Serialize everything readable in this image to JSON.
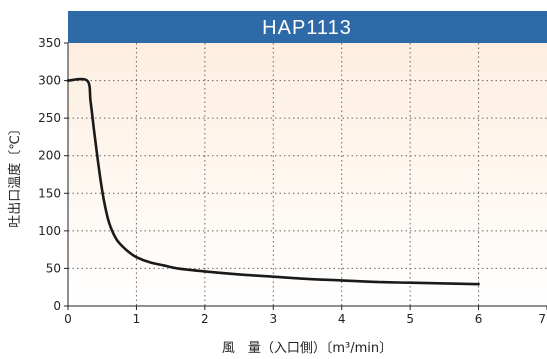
{
  "chart_data": {
    "type": "line",
    "title": "HAP1113",
    "xlabel": "風　量（入口側）〔m³/min〕",
    "ylabel": "吐出口温度〔℃〕",
    "xlim": [
      0,
      7
    ],
    "ylim": [
      0,
      350
    ],
    "x_ticks": [
      "0",
      "1",
      "2",
      "3",
      "4",
      "5",
      "6",
      "7"
    ],
    "y_ticks": [
      "0",
      "50",
      "100",
      "150",
      "200",
      "250",
      "300",
      "350"
    ],
    "grid": true,
    "background_gradient": [
      "#fdeee0",
      "#ffffff"
    ],
    "colors": {
      "title_bar": "#2e6aa7",
      "line": "#1a1a1a",
      "grid": "#666666"
    },
    "series": [
      {
        "name": "",
        "x": [
          0,
          0.28,
          0.33,
          0.38,
          0.43,
          0.48,
          0.53,
          0.6,
          0.7,
          0.8,
          0.9,
          1.0,
          1.2,
          1.4,
          1.6,
          2.0,
          2.5,
          3.0,
          3.5,
          4.0,
          4.5,
          5.0,
          5.5,
          6.0
        ],
        "y": [
          300,
          300,
          272,
          234,
          198,
          165,
          138,
          111,
          90,
          79,
          71,
          65,
          58,
          54,
          50,
          46,
          42,
          39,
          36,
          34,
          32,
          31,
          30,
          29
        ]
      }
    ]
  }
}
